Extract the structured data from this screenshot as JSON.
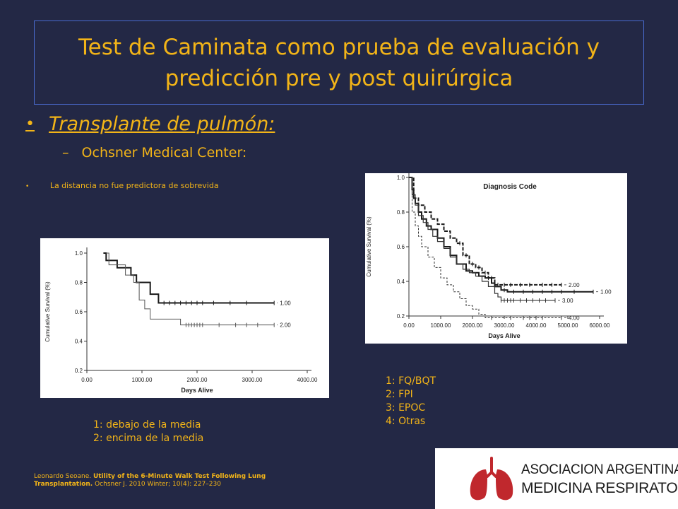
{
  "slide": {
    "title": "Test de Caminata como prueba de evaluación y predicción pre y post quirúrgica",
    "bullet_main": "Transplante de pulmón:",
    "sub_bullet": "Ochsner Medical Center:",
    "small_bullet": "La distancia no fue predictora  de sobrevida",
    "legend_left": [
      "1: debajo de la media",
      "2: encima de la media"
    ],
    "legend_right": [
      "1: FQ/BQT",
      "2: FPI",
      "3: EPOC",
      "4: Otras"
    ],
    "reference": {
      "author": "Leonardo Seoane. ",
      "article": "Utility of the 6-Minute Walk Test Following Lung Transplantation.",
      "journal": " Ochsner J. 2010 Winter; 10(4): 227–230"
    },
    "logo": {
      "line1": "ASOCIACION ARGENTINA DE",
      "line2": "MEDICINA RESPIRATORIA",
      "color": "#c0282d"
    },
    "colors": {
      "background": "#232845",
      "accent": "#f2b418",
      "title_border": "#4a6bd0"
    }
  },
  "chart_data": [
    {
      "type": "line",
      "subtype": "kaplan-meier",
      "xlabel": "Days Alive",
      "ylabel": "Cumulative Survival (%)",
      "xlim": [
        0,
        4000
      ],
      "ylim": [
        0.2,
        1.0
      ],
      "xticks": [
        0,
        1000,
        2000,
        3000,
        4000
      ],
      "xtick_labels": [
        "0.00",
        "1000.00",
        "2000.00",
        "3000.00",
        "4000.00"
      ],
      "yticks": [
        0.2,
        0.4,
        0.6,
        0.8,
        1.0
      ],
      "ytick_labels": [
        "0.2",
        "0.4",
        "0.6",
        "0.8",
        "1.0"
      ],
      "series": [
        {
          "name": "1.00",
          "x": [
            300,
            350,
            350,
            550,
            550,
            800,
            800,
            900,
            900,
            1150,
            1150,
            1300,
            1300,
            1800,
            1800,
            3400
          ],
          "y": [
            1.0,
            1.0,
            0.95,
            0.95,
            0.9,
            0.9,
            0.85,
            0.85,
            0.8,
            0.8,
            0.72,
            0.72,
            0.66,
            0.66,
            0.66,
            0.66
          ],
          "censor": [
            1400,
            1500,
            1600,
            1700,
            1800,
            1900,
            2000,
            2100,
            2300,
            2600,
            2900,
            3400
          ]
        },
        {
          "name": "2.00",
          "x": [
            350,
            400,
            400,
            700,
            700,
            850,
            850,
            950,
            950,
            1050,
            1050,
            1150,
            1150,
            1700,
            1700,
            3400
          ],
          "y": [
            1.0,
            1.0,
            0.92,
            0.92,
            0.85,
            0.85,
            0.8,
            0.8,
            0.68,
            0.68,
            0.62,
            0.62,
            0.55,
            0.55,
            0.51,
            0.51
          ],
          "censor": [
            1800,
            1850,
            1900,
            1950,
            2000,
            2050,
            2100,
            2400,
            2700,
            2900,
            3100,
            3400
          ]
        }
      ]
    },
    {
      "type": "line",
      "subtype": "kaplan-meier",
      "title": "Diagnosis Code",
      "xlabel": "Days Alive",
      "ylabel": "Cumulative Survival (%)",
      "xlim": [
        0,
        6000
      ],
      "ylim": [
        0.2,
        1.0
      ],
      "xticks": [
        0,
        1000,
        2000,
        3000,
        4000,
        5000,
        6000
      ],
      "xtick_labels": [
        "0.00",
        "1000.00",
        "2000.00",
        "3000.00",
        "4000.00",
        "5000.00",
        "6000.00"
      ],
      "yticks": [
        0.2,
        0.4,
        0.6,
        0.8,
        1.0
      ],
      "ytick_labels": [
        "0.2",
        "0.4",
        "0.6",
        "0.8",
        "1.0"
      ],
      "series": [
        {
          "name": "1.00",
          "x": [
            0,
            100,
            150,
            200,
            300,
            400,
            550,
            700,
            900,
            1100,
            1300,
            1500,
            1800,
            2000,
            2200,
            2400,
            2600,
            2700,
            2900,
            3100,
            3300,
            3500,
            5800
          ],
          "y": [
            1.0,
            0.93,
            0.88,
            0.85,
            0.8,
            0.76,
            0.72,
            0.7,
            0.65,
            0.6,
            0.55,
            0.5,
            0.46,
            0.45,
            0.43,
            0.42,
            0.39,
            0.37,
            0.35,
            0.34,
            0.34,
            0.34,
            0.34
          ],
          "censor": [
            2500,
            2700,
            3000,
            3300,
            3600,
            3900,
            4200,
            4500,
            4800,
            5200,
            5800
          ]
        },
        {
          "name": "2.00",
          "x": [
            0,
            150,
            300,
            500,
            700,
            900,
            1100,
            1300,
            1500,
            1700,
            1900,
            2100,
            2300,
            2500,
            2700,
            4800
          ],
          "y": [
            1.0,
            0.88,
            0.84,
            0.8,
            0.76,
            0.73,
            0.69,
            0.65,
            0.62,
            0.55,
            0.5,
            0.48,
            0.45,
            0.42,
            0.38,
            0.38
          ],
          "censor": [
            1600,
            1800,
            2000,
            2200,
            2400,
            2600,
            2800,
            3000,
            3200,
            3500,
            3800,
            4200,
            4500,
            4800
          ]
        },
        {
          "name": "3.00",
          "x": [
            0,
            100,
            200,
            300,
            450,
            600,
            750,
            900,
            1100,
            1300,
            1500,
            1700,
            1900,
            2100,
            2300,
            2500,
            2700,
            2800,
            2900,
            4600
          ],
          "y": [
            1.0,
            0.9,
            0.84,
            0.78,
            0.74,
            0.7,
            0.66,
            0.63,
            0.59,
            0.54,
            0.5,
            0.47,
            0.45,
            0.43,
            0.4,
            0.37,
            0.33,
            0.31,
            0.29,
            0.29
          ],
          "censor": [
            2900,
            3000,
            3100,
            3200,
            3300,
            3500,
            3700,
            3900,
            4100,
            4300,
            4600
          ]
        },
        {
          "name": "4.00",
          "x": [
            0,
            100,
            200,
            300,
            400,
            600,
            800,
            1000,
            1200,
            1400,
            1600,
            1800,
            2000,
            2200,
            2400,
            2600,
            4800
          ],
          "y": [
            1.0,
            0.8,
            0.72,
            0.66,
            0.6,
            0.54,
            0.48,
            0.42,
            0.38,
            0.34,
            0.3,
            0.26,
            0.24,
            0.21,
            0.19,
            0.19,
            0.19
          ],
          "censor": [
            2600,
            3200,
            3600,
            3800,
            4000,
            4200,
            4800
          ]
        }
      ]
    }
  ]
}
